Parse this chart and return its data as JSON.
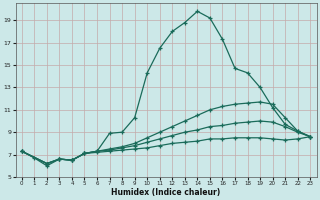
{
  "xlabel": "Humidex (Indice chaleur)",
  "bg_color": "#cce8e8",
  "grid_color": "#c4aaaa",
  "line_color": "#1a6b5a",
  "xlim": [
    -0.5,
    23.5
  ],
  "ylim": [
    5,
    20.5
  ],
  "yticks": [
    5,
    7,
    9,
    11,
    13,
    15,
    17,
    19
  ],
  "xticks": [
    0,
    1,
    2,
    3,
    4,
    5,
    6,
    7,
    8,
    9,
    10,
    11,
    12,
    13,
    14,
    15,
    16,
    17,
    18,
    19,
    20,
    21,
    22,
    23
  ],
  "line1_x": [
    0,
    1,
    2,
    3,
    4,
    5,
    6,
    7,
    8,
    9,
    10,
    11,
    12,
    13,
    14,
    15,
    16,
    17,
    18,
    19,
    20,
    21,
    22,
    23
  ],
  "line1_y": [
    7.3,
    6.7,
    6.0,
    6.6,
    6.5,
    7.1,
    7.3,
    8.9,
    9.0,
    10.3,
    14.3,
    16.5,
    18.0,
    18.8,
    19.8,
    19.2,
    17.3,
    14.7,
    14.3,
    13.0,
    11.2,
    9.7,
    9.1,
    8.6
  ],
  "line2_x": [
    0,
    2,
    3,
    4,
    5,
    6,
    7,
    8,
    9,
    10,
    11,
    12,
    13,
    14,
    15,
    16,
    17,
    18,
    19,
    20,
    21,
    22,
    23
  ],
  "line2_y": [
    7.3,
    6.2,
    6.6,
    6.5,
    7.1,
    7.3,
    7.5,
    7.7,
    8.0,
    8.5,
    9.0,
    9.5,
    10.0,
    10.5,
    11.0,
    11.3,
    11.5,
    11.6,
    11.7,
    11.5,
    10.3,
    9.1,
    8.6
  ],
  "line3_x": [
    0,
    2,
    3,
    4,
    5,
    6,
    7,
    8,
    9,
    10,
    11,
    12,
    13,
    14,
    15,
    16,
    17,
    18,
    19,
    20,
    21,
    22,
    23
  ],
  "line3_y": [
    7.3,
    6.2,
    6.6,
    6.5,
    7.1,
    7.3,
    7.4,
    7.6,
    7.8,
    8.1,
    8.4,
    8.7,
    9.0,
    9.2,
    9.5,
    9.6,
    9.8,
    9.9,
    10.0,
    9.9,
    9.5,
    9.0,
    8.6
  ],
  "line4_x": [
    0,
    2,
    3,
    4,
    5,
    6,
    7,
    8,
    9,
    10,
    11,
    12,
    13,
    14,
    15,
    16,
    17,
    18,
    19,
    20,
    21,
    22,
    23
  ],
  "line4_y": [
    7.3,
    6.2,
    6.6,
    6.5,
    7.1,
    7.2,
    7.3,
    7.4,
    7.5,
    7.6,
    7.8,
    8.0,
    8.1,
    8.2,
    8.4,
    8.4,
    8.5,
    8.5,
    8.5,
    8.4,
    8.3,
    8.4,
    8.6
  ]
}
